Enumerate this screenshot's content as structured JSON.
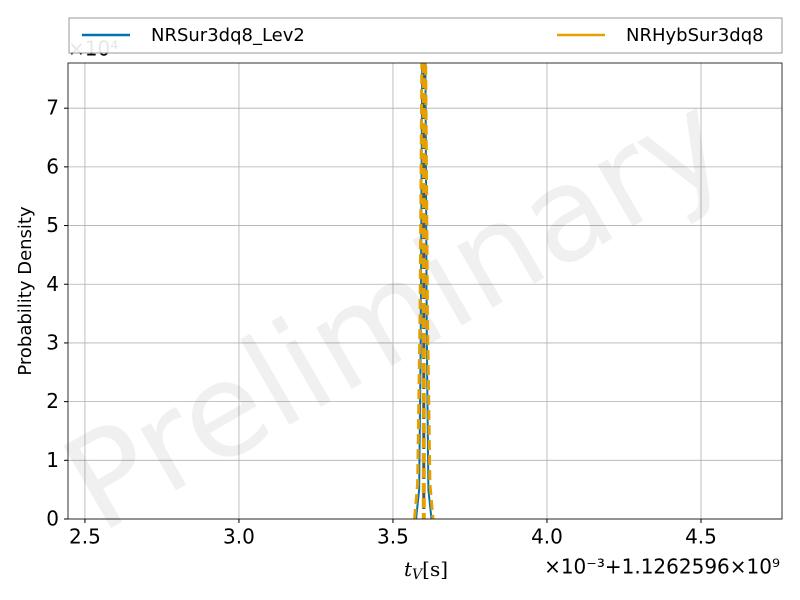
{
  "chart_data": {
    "type": "line",
    "ylabel": "Probability Density",
    "xlabel": {
      "symbol": "t",
      "subscript": "V",
      "unit": "[s]"
    },
    "x_offset_label": "×10⁻³+1.1262596×10⁹",
    "y_offset_label": "×10⁴",
    "watermark": "Preliminary",
    "xlim": [
      2.445,
      4.763
    ],
    "ylim": [
      0,
      7.77
    ],
    "xticks": [
      {
        "value": 2.5,
        "label": "2.5"
      },
      {
        "value": 3.0,
        "label": "3.0"
      },
      {
        "value": 3.5,
        "label": "3.5"
      },
      {
        "value": 4.0,
        "label": "4.0"
      },
      {
        "value": 4.5,
        "label": "4.5"
      }
    ],
    "yticks": [
      0,
      1,
      2,
      3,
      4,
      5,
      6,
      7
    ],
    "grid": true,
    "legend": "top",
    "series": [
      {
        "name": "NRSur3dq8_Lev2",
        "color": "#0072b2",
        "dash": false,
        "median": 3.6,
        "x": [
          3.575,
          3.585,
          3.59,
          3.595,
          3.6,
          3.605,
          3.61,
          3.615,
          3.625
        ],
        "values": [
          0,
          0.5,
          3,
          8,
          10,
          8,
          3,
          0.5,
          0
        ]
      },
      {
        "name": "NRHybSur3dq8",
        "color": "#e69f00",
        "dash": true,
        "median": 3.6,
        "x": [
          3.57,
          3.58,
          3.588,
          3.594,
          3.6,
          3.606,
          3.612,
          3.62,
          3.63
        ],
        "values": [
          0,
          0.6,
          3.5,
          8,
          10,
          8,
          3.5,
          0.6,
          0
        ]
      }
    ]
  }
}
